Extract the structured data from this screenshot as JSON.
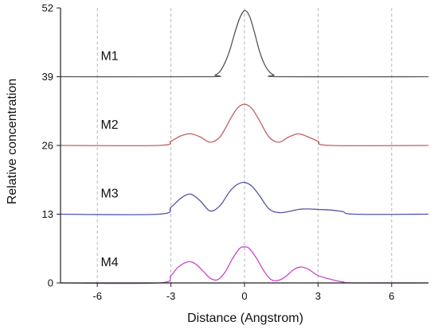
{
  "chart_data": {
    "type": "line",
    "xlabel": "Distance (Angstrom)",
    "ylabel": "Relative concentration",
    "xlim": [
      -7.5,
      7.5
    ],
    "ylim": [
      0,
      52
    ],
    "x_ticks": [
      -6,
      -3,
      0,
      3,
      6
    ],
    "x_tick_labels": [
      "-6",
      "-3",
      "0",
      "3",
      "6"
    ],
    "y_ticks": [
      0,
      13,
      26,
      39,
      52
    ],
    "y_tick_labels": [
      "0",
      "13",
      "26",
      "39",
      "52"
    ],
    "grid": "vertical dashed",
    "series": [
      {
        "name": "M1",
        "color": "#555555",
        "x": [
          -7.5,
          -1.5,
          -1.2,
          -1.0,
          -0.8,
          -0.6,
          -0.4,
          -0.2,
          0.0,
          0.2,
          0.4,
          0.6,
          0.8,
          1.0,
          1.2,
          1.5,
          7.5
        ],
        "values": [
          39,
          39,
          39.3,
          40.0,
          41.6,
          44.0,
          47.2,
          50.0,
          51.5,
          50.5,
          47.5,
          44.0,
          41.5,
          40.0,
          39.3,
          39,
          39
        ]
      },
      {
        "name": "M2",
        "color": "#c06060",
        "x": [
          -7.5,
          -3.5,
          -3.0,
          -2.6,
          -2.2,
          -1.8,
          -1.4,
          -1.0,
          -0.6,
          -0.3,
          0.0,
          0.3,
          0.6,
          1.0,
          1.4,
          1.8,
          2.2,
          2.6,
          3.0,
          3.5,
          7.5
        ],
        "values": [
          26,
          26,
          26.8,
          27.8,
          28.2,
          27.6,
          26.6,
          27.6,
          30.8,
          33.0,
          33.8,
          33.0,
          30.8,
          27.6,
          26.6,
          27.6,
          28.2,
          27.6,
          26.8,
          26,
          26
        ]
      },
      {
        "name": "M3",
        "color": "#5555aa",
        "x": [
          -7.5,
          -3.5,
          -3.0,
          -2.6,
          -2.2,
          -1.8,
          -1.4,
          -1.0,
          -0.6,
          -0.3,
          0.0,
          0.3,
          0.6,
          1.0,
          1.4,
          1.8,
          2.2,
          2.6,
          3.0,
          3.5,
          4.0,
          4.5,
          7.5
        ],
        "values": [
          13,
          13,
          14.3,
          16.0,
          16.8,
          15.5,
          13.6,
          14.6,
          17.3,
          18.6,
          19.0,
          18.3,
          16.6,
          14.0,
          13.3,
          13.5,
          13.9,
          14.0,
          13.9,
          13.8,
          13.5,
          13.0,
          13
        ]
      },
      {
        "name": "M4",
        "color": "#cc44cc",
        "x": [
          -7.5,
          -3.5,
          -3.0,
          -2.7,
          -2.3,
          -2.0,
          -1.7,
          -1.4,
          -1.1,
          -0.8,
          -0.5,
          -0.2,
          0.0,
          0.2,
          0.5,
          0.8,
          1.1,
          1.4,
          1.7,
          2.0,
          2.3,
          2.6,
          3.0,
          3.5,
          4.0,
          4.5,
          7.5
        ],
        "values": [
          0,
          0,
          1.4,
          3.0,
          4.0,
          3.6,
          2.3,
          0.9,
          0.6,
          2.0,
          4.5,
          6.5,
          6.8,
          6.5,
          4.6,
          2.2,
          0.6,
          0.5,
          1.3,
          2.5,
          3.0,
          2.6,
          1.4,
          0.7,
          0.2,
          0,
          0
        ]
      }
    ]
  }
}
